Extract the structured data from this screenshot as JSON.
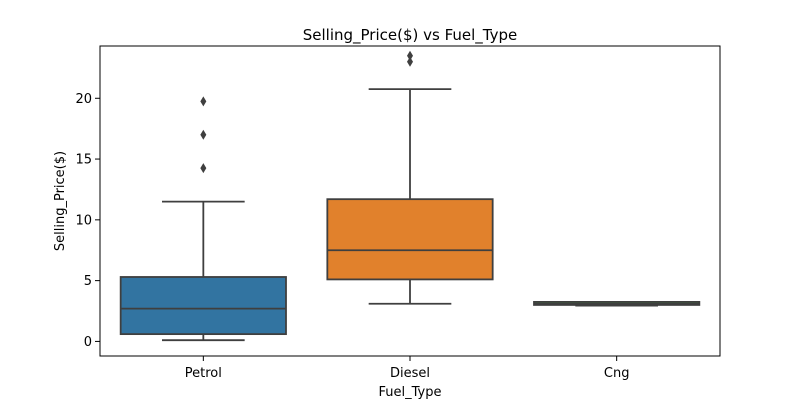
{
  "chart_data": {
    "type": "box",
    "title": "Selling_Price($) vs Fuel_Type",
    "xlabel": "Fuel_Type",
    "ylabel": "Selling_Price($)",
    "ylim": [
      -1.2,
      24.3
    ],
    "yticks": [
      0,
      5,
      10,
      15,
      20
    ],
    "grid": false,
    "categories": [
      "Petrol",
      "Diesel",
      "Cng"
    ],
    "boxes": [
      {
        "category": "Petrol",
        "color": "#3274a1",
        "whisker_low": 0.1,
        "q1": 0.6,
        "median": 2.7,
        "q3": 5.3,
        "whisker_high": 11.5,
        "outliers": [
          14.25,
          17.0,
          19.75
        ]
      },
      {
        "category": "Diesel",
        "color": "#e1812c",
        "whisker_low": 3.1,
        "q1": 5.1,
        "median": 7.5,
        "q3": 11.7,
        "whisker_high": 20.75,
        "outliers": [
          23.0,
          23.5
        ]
      },
      {
        "category": "Cng",
        "color": "#3a923a",
        "whisker_low": 2.95,
        "q1": 3.0,
        "median": 3.1,
        "q3": 3.25,
        "whisker_high": 3.25,
        "outliers": []
      }
    ]
  }
}
